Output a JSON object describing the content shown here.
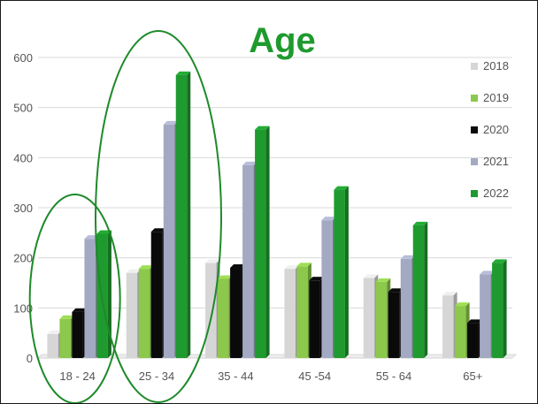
{
  "chart_data": {
    "type": "bar",
    "title": "Age",
    "categories": [
      "18 - 24",
      "25 - 34",
      "35 - 44",
      "45 -54",
      "55 - 64",
      "65+"
    ],
    "series": [
      {
        "name": "2018",
        "color": "#d6d6d6",
        "values": [
          48,
          170,
          190,
          178,
          160,
          125
        ]
      },
      {
        "name": "2019",
        "color": "#8cc84b",
        "values": [
          78,
          178,
          158,
          183,
          152,
          104
        ]
      },
      {
        "name": "2020",
        "color": "#0a0a0a",
        "values": [
          92,
          252,
          180,
          155,
          132,
          70
        ]
      },
      {
        "name": "2021",
        "color": "#a4a9c3",
        "values": [
          238,
          466,
          385,
          275,
          198,
          167
        ]
      },
      {
        "name": "2022",
        "color": "#1f9a2e",
        "values": [
          248,
          565,
          456,
          336,
          265,
          190
        ]
      }
    ],
    "yticks": [
      0,
      100,
      200,
      300,
      400,
      500,
      600
    ],
    "ylim": [
      0,
      600
    ],
    "xlabel": "",
    "ylabel": "",
    "grid": true,
    "legend_position": "right",
    "highlight_color": "#1e8a2a",
    "highlighted_categories": [
      "18 - 24",
      "25 - 34"
    ]
  }
}
